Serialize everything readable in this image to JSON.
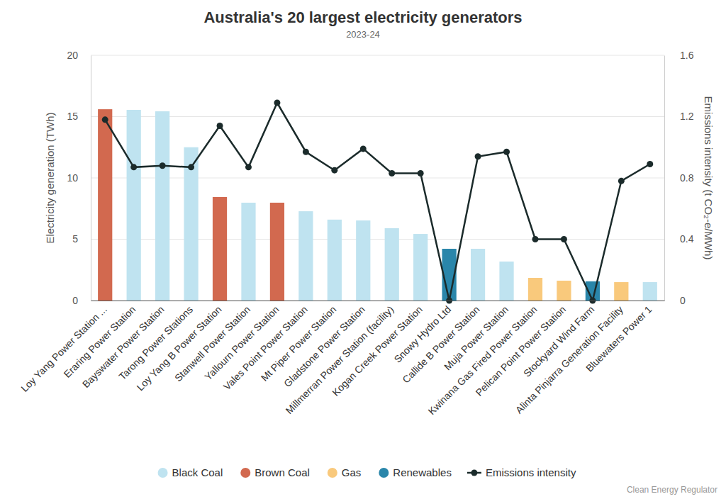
{
  "chart_data": {
    "type": "bar",
    "title": "Australia's 20 largest electricity generators",
    "subtitle": "2023-24",
    "source": "Clean Energy Regulator",
    "y_label": "Electricity generation (TWh)",
    "y2_label": "Emissions intensity (t CO₂-e/MWh)",
    "categories": [
      "Loy Yang Power Station ...",
      "Eraring Power Station",
      "Bayswater Power Station",
      "Tarong Power Stations",
      "Loy Yang B Power Station",
      "Stanwell Power Station",
      "Yallourn Power Station",
      "Vales Point Power Station",
      "Mt Piper Power Station",
      "Gladstone Power Station",
      "Millmerran Power Station (facility)",
      "Kogan Creek Power Station",
      "Snowy Hydro Ltd",
      "Callide B Power Station",
      "Muja Power Station",
      "Kwinana Gas Fired Power Station",
      "Pelican Point Power Station",
      "Stockyard Wind Farm",
      "Alinta Pinjarra Generation Facility",
      "Bluewaters Power 1"
    ],
    "ylim": [
      0,
      20
    ],
    "yticks": [
      0,
      5,
      10,
      15,
      20
    ],
    "y2lim": [
      0,
      1.6
    ],
    "y2ticks": [
      0,
      0.4,
      0.8,
      1.2,
      1.6
    ],
    "grid": true,
    "stacked": true,
    "legend": "bottom",
    "series": [
      {
        "name": "Black Coal",
        "type": "bar",
        "color": "#bfe3f0",
        "values": [
          null,
          15.55,
          15.43,
          12.5,
          null,
          7.98,
          null,
          7.28,
          6.6,
          6.53,
          5.9,
          5.43,
          null,
          4.22,
          3.18,
          null,
          null,
          null,
          null,
          1.5
        ]
      },
      {
        "name": "Brown Coal",
        "type": "bar",
        "color": "#d2694f",
        "values": [
          15.6,
          null,
          null,
          null,
          8.44,
          null,
          7.98,
          null,
          null,
          null,
          null,
          null,
          null,
          null,
          null,
          null,
          null,
          null,
          null,
          null
        ]
      },
      {
        "name": "Gas",
        "type": "bar",
        "color": "#f9c97c",
        "values": [
          null,
          null,
          null,
          null,
          null,
          null,
          null,
          null,
          null,
          null,
          null,
          null,
          null,
          null,
          null,
          1.85,
          1.62,
          null,
          1.5,
          null
        ]
      },
      {
        "name": "Renewables",
        "type": "bar",
        "color": "#2a86aa",
        "values": [
          null,
          null,
          null,
          null,
          null,
          null,
          null,
          null,
          null,
          null,
          null,
          null,
          4.22,
          null,
          null,
          null,
          null,
          1.56,
          null,
          null
        ]
      },
      {
        "name": "Emissions intensity",
        "type": "line",
        "axis": "y2",
        "color": "#1b2b2b",
        "marker": "circle",
        "values": [
          1.18,
          0.87,
          0.88,
          0.87,
          1.14,
          0.87,
          1.29,
          0.97,
          0.85,
          0.99,
          0.83,
          0.83,
          0,
          0.94,
          0.97,
          0.4,
          0.4,
          0,
          0.78,
          0.89
        ]
      }
    ]
  }
}
